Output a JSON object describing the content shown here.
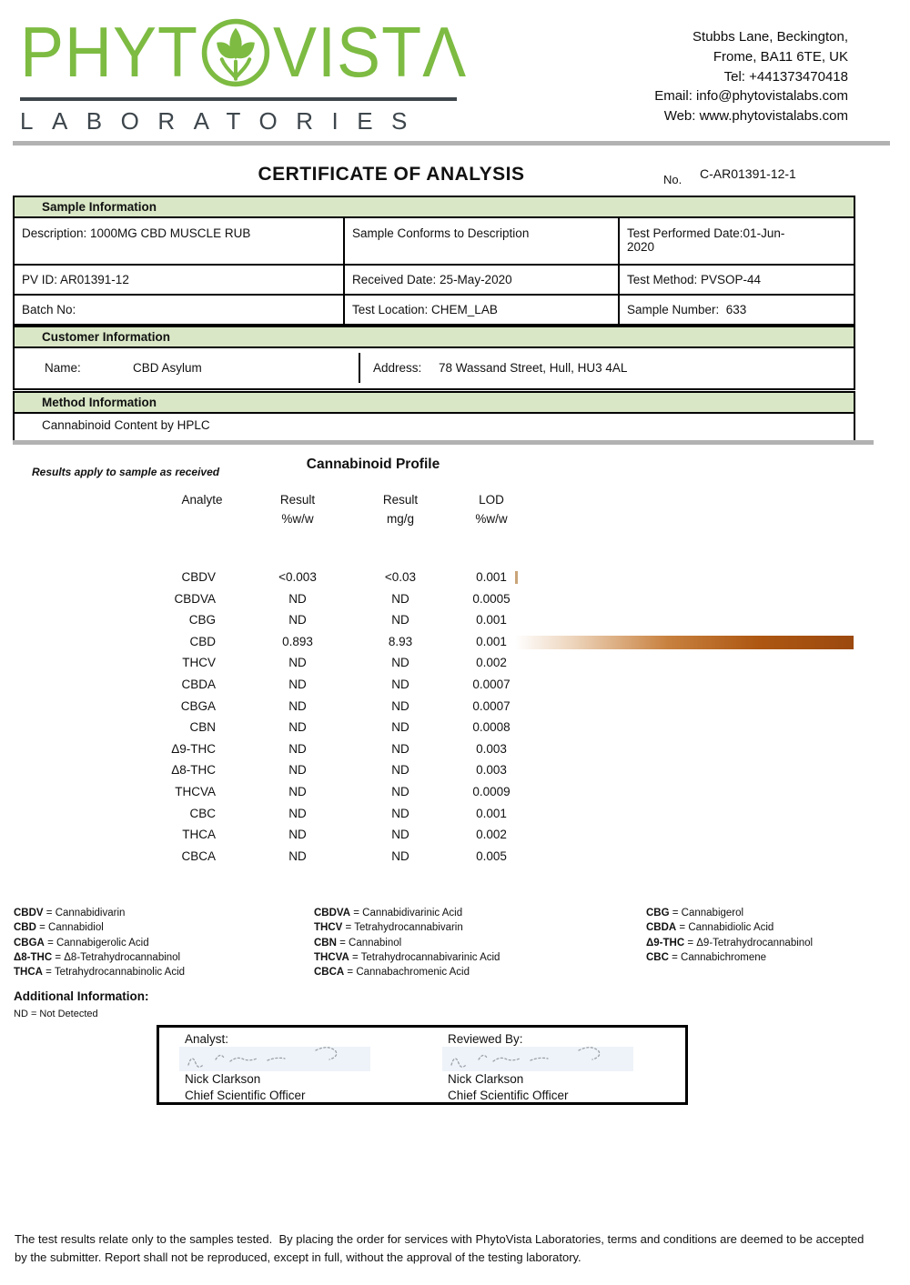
{
  "colors": {
    "logo_green": "#7dbb42",
    "logo_dark": "#3d464c",
    "band_green": "#d9e7c6",
    "divider_gray": "#b2b2b2",
    "bar_dark_end": "#9c490f",
    "bar_tick_tan": "#c9a478"
  },
  "header": {
    "logo": {
      "part1": "PHYT",
      "part2": "VIST",
      "part3": "Λ",
      "subtitle": "LABORATORIES",
      "leaf_icon": "leaf-in-circle"
    },
    "contact": {
      "line1": "Stubbs Lane, Beckington,",
      "line2": "Frome, BA11 6TE, UK",
      "line3": "Tel: +441373470418",
      "line4": "Email: info@phytovistalabs.com",
      "line5": "Web: www.phytovistalabs.com"
    }
  },
  "title": {
    "text": "CERTIFICATE OF ANALYSIS",
    "no_label": "No.",
    "number": "C-AR01391-12-1"
  },
  "sample_information": {
    "heading": "Sample Information",
    "rows": [
      [
        "Description: 1000MG CBD MUSCLE RUB",
        "Sample Conforms to Description",
        "Test Performed Date:01-Jun-\n2020"
      ],
      [
        "PV ID: AR01391-12",
        "Received Date: 25-May-2020",
        "Test Method: PVSOP-44"
      ],
      [
        "Batch No:",
        "Test Location: CHEM_LAB",
        "Sample Number:  633"
      ]
    ]
  },
  "customer_information": {
    "heading": "Customer Information",
    "name_label": "Name:",
    "name_value": "CBD Asylum",
    "address_label": "Address:",
    "address_value": "78 Wassand Street, Hull, HU3 4AL"
  },
  "method_information": {
    "heading": "Method Information",
    "method": "Cannabinoid Content by HPLC"
  },
  "profile": {
    "note": "Results apply to sample as received",
    "title": "Cannabinoid Profile",
    "headers": {
      "analyte": "Analyte",
      "r1a": "Result",
      "r1b": "%w/w",
      "r2a": "Result",
      "r2b": "mg/g",
      "r3a": "LOD",
      "r3b": "%w/w"
    }
  },
  "chart_data": {
    "type": "table",
    "title": "Cannabinoid Profile",
    "columns": [
      "Analyte",
      "Result %w/w",
      "Result mg/g",
      "LOD %w/w"
    ],
    "rows": [
      {
        "analyte": "CBDV",
        "result_pct": "<0.003",
        "result_mgg": "<0.03",
        "lod": "0.001",
        "bar": 0.008
      },
      {
        "analyte": "CBDVA",
        "result_pct": "ND",
        "result_mgg": "ND",
        "lod": "0.0005",
        "bar": 0
      },
      {
        "analyte": "CBG",
        "result_pct": "ND",
        "result_mgg": "ND",
        "lod": "0.001",
        "bar": 0
      },
      {
        "analyte": "CBD",
        "result_pct": "0.893",
        "result_mgg": "8.93",
        "lod": "0.001",
        "bar": 1.0
      },
      {
        "analyte": "THCV",
        "result_pct": "ND",
        "result_mgg": "ND",
        "lod": "0.002",
        "bar": 0
      },
      {
        "analyte": "CBDA",
        "result_pct": "ND",
        "result_mgg": "ND",
        "lod": "0.0007",
        "bar": 0
      },
      {
        "analyte": "CBGA",
        "result_pct": "ND",
        "result_mgg": "ND",
        "lod": "0.0007",
        "bar": 0
      },
      {
        "analyte": "CBN",
        "result_pct": "ND",
        "result_mgg": "ND",
        "lod": "0.0008",
        "bar": 0
      },
      {
        "analyte": "Δ9-THC",
        "result_pct": "ND",
        "result_mgg": "ND",
        "lod": "0.003",
        "bar": 0
      },
      {
        "analyte": "Δ8-THC",
        "result_pct": "ND",
        "result_mgg": "ND",
        "lod": "0.003",
        "bar": 0
      },
      {
        "analyte": "THCVA",
        "result_pct": "ND",
        "result_mgg": "ND",
        "lod": "0.0009",
        "bar": 0
      },
      {
        "analyte": "CBC",
        "result_pct": "ND",
        "result_mgg": "ND",
        "lod": "0.001",
        "bar": 0
      },
      {
        "analyte": "THCA",
        "result_pct": "ND",
        "result_mgg": "ND",
        "lod": "0.002",
        "bar": 0
      },
      {
        "analyte": "CBCA",
        "result_pct": "ND",
        "result_mgg": "ND",
        "lod": "0.005",
        "bar": 0
      }
    ]
  },
  "legend": {
    "columns": [
      [
        {
          "abbr": "CBDV",
          "full": "Cannabidivarin"
        },
        {
          "abbr": "CBD",
          "full": "Cannabidiol"
        },
        {
          "abbr": "CBGA",
          "full": "Cannabigerolic Acid"
        },
        {
          "abbr": "Δ8-THC",
          "full": "Δ8-Tetrahydrocannabinol"
        },
        {
          "abbr": "THCA",
          "full": "Tetrahydrocannabinolic Acid"
        }
      ],
      [
        {
          "abbr": "CBDVA",
          "full": "Cannabidivarinic Acid"
        },
        {
          "abbr": "THCV",
          "full": "Tetrahydrocannabivarin"
        },
        {
          "abbr": "CBN",
          "full": "Cannabinol"
        },
        {
          "abbr": "THCVA",
          "full": "Tetrahydrocannabivarinic Acid"
        },
        {
          "abbr": "CBCA",
          "full": "Cannabachromenic Acid"
        }
      ],
      [
        {
          "abbr": "CBG",
          "full": "Cannabigerol"
        },
        {
          "abbr": "CBDA",
          "full": "Cannabidiolic Acid"
        },
        {
          "abbr": "Δ9-THC",
          "full": "Δ9-Tetrahydrocannabinol"
        },
        {
          "abbr": "CBC",
          "full": "Cannabichromene"
        }
      ]
    ]
  },
  "additional_information": {
    "heading": "Additional Information:",
    "nd_note": "ND = Not Detected"
  },
  "signatures": {
    "signers": [
      {
        "label": "Analyst:",
        "name": "Nick Clarkson",
        "title": "Chief Scientific Officer"
      },
      {
        "label": "Reviewed By:",
        "name": "Nick Clarkson",
        "title": "Chief Scientific Officer"
      }
    ]
  },
  "footer": {
    "text": "The test results relate only to the samples tested.  By placing the order for services with PhytoVista Laboratories, terms and conditions are deemed to be accepted by the submitter. Report shall not be reproduced, except in full, without the approval of the testing laboratory."
  }
}
